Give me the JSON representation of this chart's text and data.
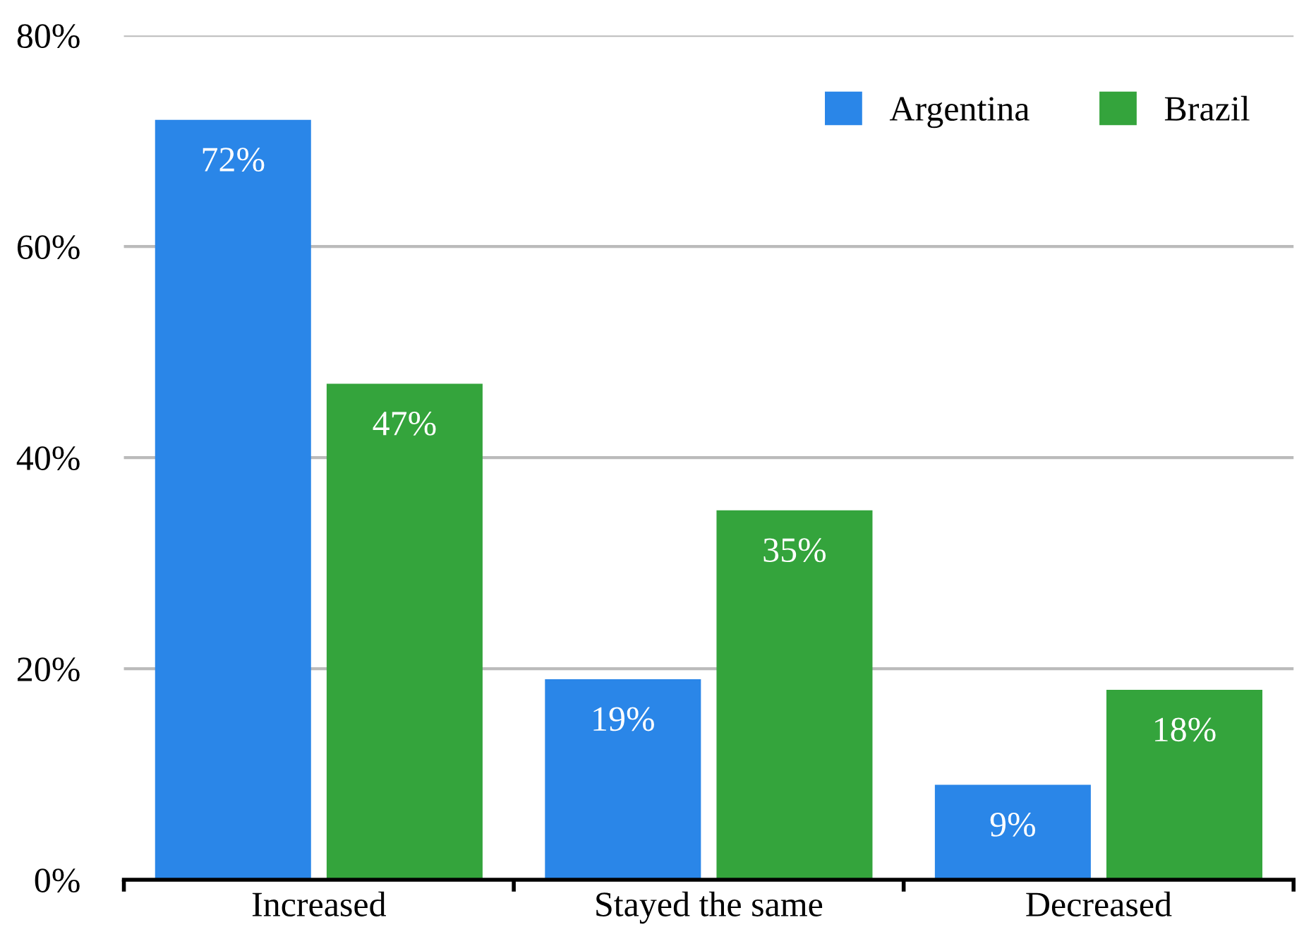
{
  "chart_data": {
    "type": "bar",
    "categories": [
      "Increased",
      "Stayed the same",
      "Decreased"
    ],
    "series": [
      {
        "name": "Argentina",
        "color": "#2a86e8",
        "values": [
          72,
          19,
          9
        ],
        "value_labels": [
          "72%",
          "19%",
          "9%"
        ]
      },
      {
        "name": "Brazil",
        "color": "#34a43c",
        "values": [
          47,
          35,
          18
        ],
        "value_labels": [
          "47%",
          "35%",
          "18%"
        ]
      }
    ],
    "ylim": [
      0,
      80
    ],
    "yticks": [
      {
        "value": 0,
        "label": "0%"
      },
      {
        "value": 20,
        "label": "20%"
      },
      {
        "value": 40,
        "label": "40%"
      },
      {
        "value": 60,
        "label": "60%"
      },
      {
        "value": 80,
        "label": "80%"
      }
    ],
    "grid": "y",
    "legend": "top right"
  }
}
